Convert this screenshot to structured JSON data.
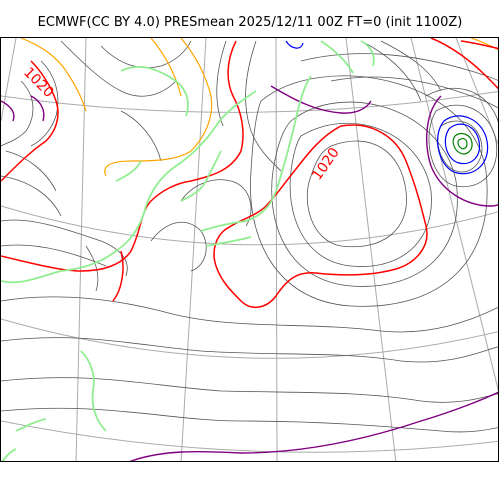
{
  "title": "ECMWF(CC BY 4.0) PRESmean 2025/12/11 00Z FT=0 (init 1100Z)",
  "map": {
    "type": "weather-chart",
    "labels": [
      "1020",
      "1020"
    ],
    "colors": {
      "graticule": "#aaaaaa",
      "coastline": "#90ee90",
      "isobar_thin": "#555555",
      "isobar_1020": "#ff0000",
      "isobar_1012": "#ffa500",
      "isobar_1028": "#800080",
      "isobar_blue": "#0000ff",
      "isobar_green": "#008000"
    }
  }
}
